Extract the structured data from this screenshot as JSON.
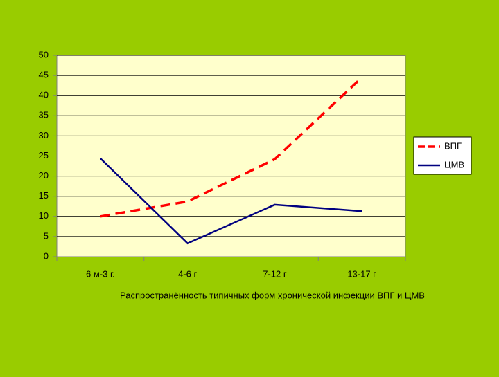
{
  "chart_data": {
    "type": "line",
    "x_label": "Распространённость  типичных форм хронической инфекции ВПГ и ЦМВ",
    "categories": [
      "6 м-3 г.",
      "4-6 г",
      "7-12 г",
      "13-17 г"
    ],
    "series": [
      {
        "name": "ВПГ",
        "color": "#ff0000",
        "style": "dashed",
        "values": [
          10,
          13.7,
          24.2,
          44.5
        ]
      },
      {
        "name": "ЦМВ",
        "color": "#000080",
        "style": "solid",
        "values": [
          24.4,
          3.3,
          12.9,
          11.3
        ]
      }
    ],
    "ylim": [
      0,
      50
    ],
    "yticks": [
      0,
      5,
      10,
      15,
      20,
      25,
      30,
      35,
      40,
      45,
      50
    ],
    "grid": true,
    "legend": "right"
  }
}
